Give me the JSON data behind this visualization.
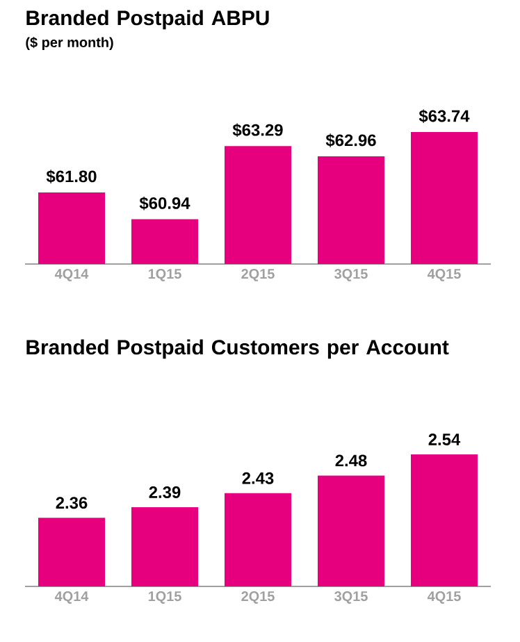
{
  "chart_data": [
    {
      "type": "bar",
      "title": "Branded Postpaid ABPU",
      "subtitle": "($ per month)",
      "categories": [
        "4Q14",
        "1Q15",
        "2Q15",
        "3Q15",
        "4Q15"
      ],
      "values": [
        61.8,
        60.94,
        63.29,
        62.96,
        63.74
      ],
      "value_labels": [
        "$61.80",
        "$60.94",
        "$63.29",
        "$62.96",
        "$63.74"
      ],
      "color": "#e6007e",
      "ylim": [
        59.5,
        63.74
      ]
    },
    {
      "type": "bar",
      "title": "Branded Postpaid Customers per Account",
      "categories": [
        "4Q14",
        "1Q15",
        "2Q15",
        "3Q15",
        "4Q15"
      ],
      "values": [
        2.36,
        2.39,
        2.43,
        2.48,
        2.54
      ],
      "data_labels": true,
      "color": "#e6007e",
      "ylim": [
        2.165,
        2.54
      ]
    }
  ]
}
